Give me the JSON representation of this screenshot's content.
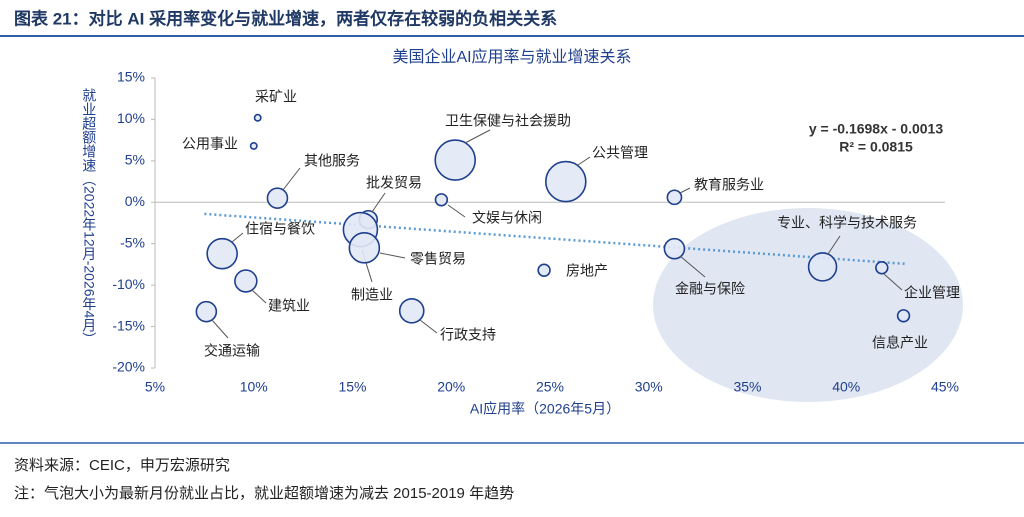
{
  "header": {
    "title": "图表 21：对比 AI 采用率变化与就业增速，两者仅存在较弱的负相关关系"
  },
  "chart_data": {
    "type": "bubble",
    "title": "美国企业AI应用率与就业增速关系",
    "x_label": "AI应用率（2026年5月）",
    "y_label": "就业超额增速（2022年12月-2026年4月）",
    "labels": [
      "采矿业",
      "公用事业",
      "其他服务",
      "卫生保健与社会援助",
      "公共管理",
      "教育服务业",
      "文娱与休闲",
      "批发贸易",
      "制造业",
      "零售贸易",
      "住宿与餐饮",
      "建筑业",
      "交通运输",
      "行政支持",
      "房地产",
      "金融与保险",
      "专业、科学与技术服务",
      "企业管理",
      "信息产业"
    ],
    "x": [
      10.2,
      10.0,
      11.2,
      20.2,
      25.8,
      31.3,
      19.5,
      15.8,
      15.4,
      15.6,
      8.4,
      9.6,
      7.6,
      18.0,
      24.7,
      31.3,
      38.8,
      41.8,
      42.9
    ],
    "y": [
      10.2,
      6.8,
      0.5,
      5.1,
      2.5,
      0.6,
      0.3,
      -2.1,
      -3.3,
      -5.5,
      -6.2,
      -9.5,
      -13.2,
      -13.1,
      -8.2,
      -5.6,
      -7.8,
      -7.9,
      -13.7
    ],
    "size": [
      0.4,
      0.4,
      4,
      16,
      16,
      2,
      1.4,
      3.2,
      11.6,
      9,
      9,
      4.8,
      4,
      5.8,
      1.4,
      4,
      7.8,
      1.4,
      1.4
    ],
    "color": "#1f3f8f",
    "fill": "#e1e8f5",
    "xlim": [
      5,
      45
    ],
    "xticks": [
      {
        "value": 5,
        "label": "5%"
      },
      {
        "value": 10,
        "label": "10%"
      },
      {
        "value": 15,
        "label": "15%"
      },
      {
        "value": 20,
        "label": "20%"
      },
      {
        "value": 25,
        "label": "25%"
      },
      {
        "value": 30,
        "label": "30%"
      },
      {
        "value": 35,
        "label": "35%"
      },
      {
        "value": 40,
        "label": "40%"
      },
      {
        "value": 45,
        "label": "45%"
      }
    ],
    "ylim": [
      -20,
      15
    ],
    "yticks": [
      {
        "value": 15,
        "label": "15%"
      },
      {
        "value": 10,
        "label": "10%"
      },
      {
        "value": 5,
        "label": "5%"
      },
      {
        "value": 0,
        "label": "0%"
      },
      {
        "value": -5,
        "label": "-5%"
      },
      {
        "value": -10,
        "label": "-10%"
      },
      {
        "value": -15,
        "label": "-15%"
      },
      {
        "value": -20,
        "label": "-20%"
      }
    ],
    "trendline": {
      "slope": -0.1698,
      "intercept": -0.13,
      "x_range": [
        7.5,
        43
      ],
      "color": "#5b9bd5",
      "equation": "y = -0.1698x - 0.0013",
      "r2_label": "R² = 0.0815"
    }
  },
  "footer": {
    "source": "资料来源：CEIC，申万宏源研究",
    "note": "注：气泡大小为最新月份就业占比，就业超额增速为减去 2015-2019 年趋势"
  }
}
